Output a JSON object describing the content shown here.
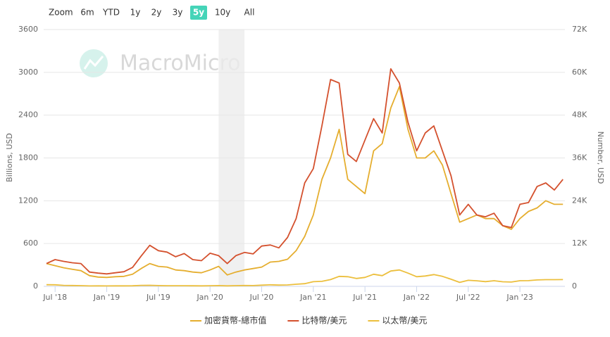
{
  "range_selector": {
    "label": "Zoom",
    "buttons": [
      "6m",
      "YTD",
      "1y",
      "2y",
      "3y",
      "5y",
      "10y",
      "All"
    ],
    "selected": 5
  },
  "watermark": "MacroMicro",
  "chart_data": {
    "type": "line",
    "y_label": "Billions, USD",
    "y2_label": "Number, USD",
    "x": [
      "2018-06",
      "2018-07",
      "2018-08",
      "2018-09",
      "2018-10",
      "2018-11",
      "2018-12",
      "2019-01",
      "2019-02",
      "2019-03",
      "2019-04",
      "2019-05",
      "2019-06",
      "2019-07",
      "2019-08",
      "2019-09",
      "2019-10",
      "2019-11",
      "2019-12",
      "2020-01",
      "2020-02",
      "2020-03",
      "2020-04",
      "2020-05",
      "2020-06",
      "2020-07",
      "2020-08",
      "2020-09",
      "2020-10",
      "2020-11",
      "2020-12",
      "2021-01",
      "2021-02",
      "2021-03",
      "2021-04",
      "2021-05",
      "2021-06",
      "2021-07",
      "2021-08",
      "2021-09",
      "2021-10",
      "2021-11",
      "2021-12",
      "2022-01",
      "2022-02",
      "2022-03",
      "2022-04",
      "2022-05",
      "2022-06",
      "2022-07",
      "2022-08",
      "2022-09",
      "2022-10",
      "2022-11",
      "2022-12",
      "2023-01",
      "2023-02",
      "2023-03",
      "2023-04",
      "2023-05",
      "2023-06"
    ],
    "xticks": [
      {
        "value": "2018-07",
        "label": "Jul '18"
      },
      {
        "value": "2019-01",
        "label": "Jan '19"
      },
      {
        "value": "2019-07",
        "label": "Jul '19"
      },
      {
        "value": "2020-01",
        "label": "Jan '20"
      },
      {
        "value": "2020-07",
        "label": "Jul '20"
      },
      {
        "value": "2021-01",
        "label": "Jan '21"
      },
      {
        "value": "2021-07",
        "label": "Jul '21"
      },
      {
        "value": "2022-01",
        "label": "Jan '22"
      },
      {
        "value": "2022-07",
        "label": "Jul '22"
      },
      {
        "value": "2023-01",
        "label": "Jan '23"
      }
    ],
    "ylim": [
      0,
      3600
    ],
    "yticks": [
      0,
      600,
      1200,
      1800,
      2400,
      3000,
      3600
    ],
    "y2lim": [
      0,
      72000
    ],
    "y2ticks": [
      0,
      {
        "value": 12000,
        "label": "12K"
      },
      {
        "value": 24000,
        "label": "24K"
      },
      {
        "value": 36000,
        "label": "36K"
      },
      {
        "value": 48000,
        "label": "48K"
      },
      {
        "value": 60000,
        "label": "60K"
      },
      {
        "value": 72000,
        "label": "72K"
      }
    ],
    "grid": true,
    "shaded_range": [
      "2020-02",
      "2020-04"
    ],
    "series": [
      {
        "name": "加密貨幣-總市值",
        "color": "#e5ae2f",
        "values": [
          320,
          290,
          260,
          240,
          220,
          150,
          130,
          125,
          135,
          140,
          170,
          250,
          320,
          280,
          270,
          230,
          220,
          200,
          190,
          230,
          280,
          160,
          200,
          230,
          250,
          270,
          340,
          350,
          380,
          500,
          700,
          1000,
          1500,
          1800,
          2200,
          1500,
          1400,
          1300,
          1900,
          2000,
          2500,
          2800,
          2200,
          1800,
          1800,
          1900,
          1700,
          1300,
          900,
          950,
          1000,
          950,
          950,
          850,
          800,
          950,
          1050,
          1100,
          1200,
          1150,
          1150
        ]
      },
      {
        "name": "比特幣/美元",
        "color": "#d4512e",
        "axis": "y2",
        "values": [
          6400,
          7500,
          7000,
          6600,
          6400,
          4000,
          3700,
          3500,
          3800,
          4100,
          5300,
          8500,
          11500,
          10000,
          9600,
          8300,
          9200,
          7500,
          7200,
          9300,
          8600,
          6400,
          8600,
          9500,
          9100,
          11300,
          11600,
          10800,
          13700,
          19000,
          29000,
          33000,
          45000,
          58000,
          57000,
          37000,
          35000,
          41000,
          47000,
          43000,
          61000,
          57000,
          46000,
          38000,
          43000,
          45000,
          38000,
          31000,
          20000,
          23000,
          20000,
          19500,
          20500,
          17000,
          16500,
          23000,
          23500,
          28000,
          29000,
          27000,
          30000
        ]
      },
      {
        "name": "以太幣/美元",
        "color": "#ecbf3d",
        "axis": "y2",
        "values": [
          450,
          430,
          280,
          230,
          200,
          110,
          130,
          110,
          135,
          140,
          160,
          270,
          290,
          220,
          170,
          180,
          180,
          150,
          130,
          180,
          220,
          130,
          200,
          230,
          225,
          340,
          430,
          360,
          390,
          600,
          740,
          1300,
          1400,
          1900,
          2800,
          2700,
          2200,
          2500,
          3400,
          3000,
          4300,
          4600,
          3700,
          2700,
          2900,
          3300,
          2800,
          2000,
          1100,
          1700,
          1550,
          1330,
          1570,
          1290,
          1200,
          1580,
          1600,
          1800,
          1870,
          1870,
          1900
        ]
      }
    ]
  }
}
